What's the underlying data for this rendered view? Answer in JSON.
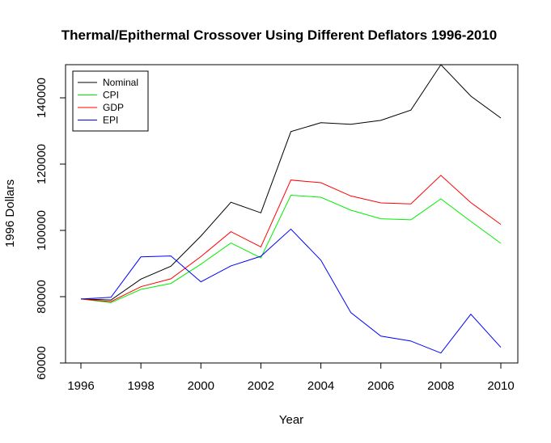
{
  "chart_data": {
    "type": "line",
    "title": "Thermal/Epithermal Crossover Using Different Deflators 1996-2010",
    "xlabel": "Year",
    "ylabel": "1996 Dollars",
    "xlim": [
      1996,
      2010
    ],
    "ylim": [
      60000,
      150000
    ],
    "x": [
      1996,
      1997,
      1998,
      1999,
      2000,
      2001,
      2002,
      2003,
      2004,
      2005,
      2006,
      2007,
      2008,
      2009,
      2010
    ],
    "xticks": [
      1996,
      1998,
      2000,
      2002,
      2004,
      2006,
      2008,
      2010
    ],
    "xtick_labels": [
      "1996",
      "1998",
      "2000",
      "2002",
      "2004",
      "2006",
      "2008",
      "2010"
    ],
    "yticks": [
      60000,
      80000,
      100000,
      120000,
      140000
    ],
    "ytick_labels": [
      "60000",
      "80000",
      "100000",
      "120000",
      "140000"
    ],
    "grid": false,
    "legend_position": "top-left",
    "series": [
      {
        "name": "Nominal",
        "color": "#000000",
        "values": [
          79300,
          79000,
          85300,
          89200,
          98300,
          108500,
          105300,
          129800,
          132500,
          132000,
          133200,
          136300,
          150000,
          140500,
          133900
        ]
      },
      {
        "name": "CPI",
        "color": "#00ee00",
        "values": [
          79300,
          78200,
          82200,
          84000,
          89800,
          96200,
          91700,
          110600,
          110000,
          106100,
          103500,
          103200,
          109500,
          102700,
          96100
        ]
      },
      {
        "name": "GDP",
        "color": "#ff0000",
        "values": [
          79300,
          78500,
          83000,
          85400,
          92100,
          99600,
          95000,
          115200,
          114400,
          110400,
          108300,
          108000,
          116600,
          108400,
          101800
        ]
      },
      {
        "name": "EPI",
        "color": "#0000ff",
        "values": [
          79300,
          79800,
          92000,
          92300,
          84500,
          89300,
          92200,
          100400,
          91000,
          75200,
          68100,
          66600,
          63000,
          74700,
          64700
        ]
      }
    ]
  }
}
